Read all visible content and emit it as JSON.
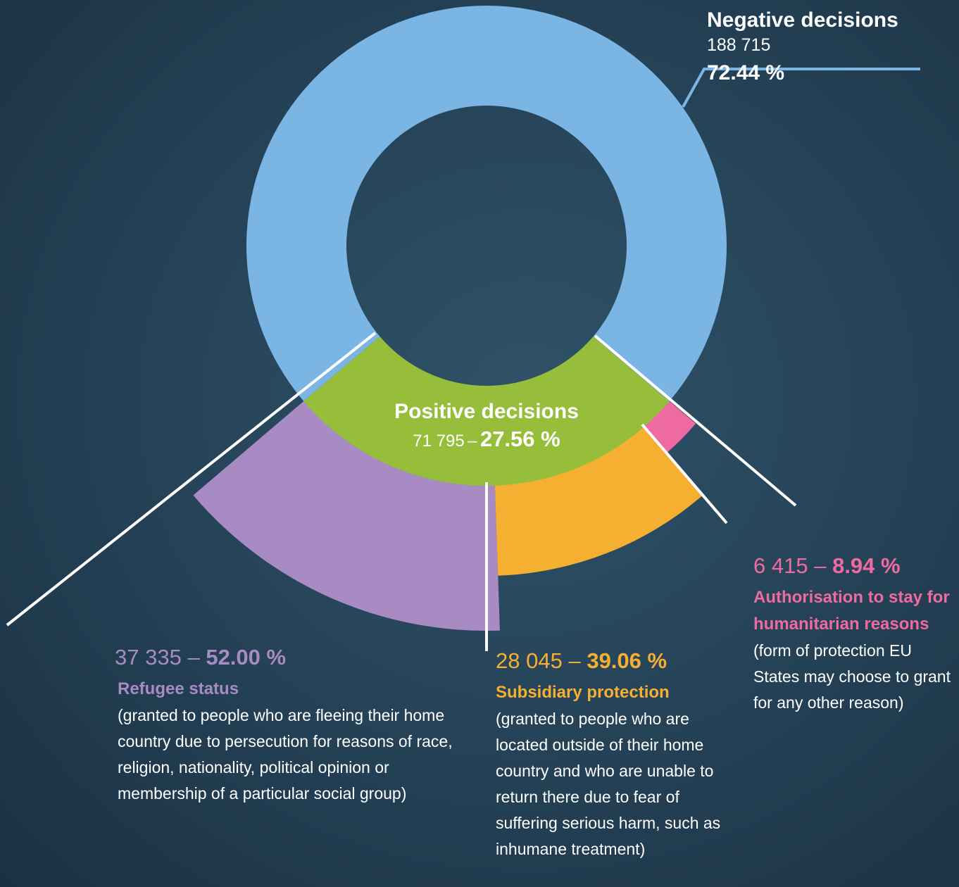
{
  "chart_data": {
    "type": "donut",
    "categories": [
      "Negative decisions",
      "Positive decisions"
    ],
    "values": [
      188715,
      71795
    ],
    "value_labels": [
      "188 715",
      "71 795"
    ],
    "percentages": [
      72.44,
      27.56
    ],
    "percentage_labels": [
      "72.44 %",
      "27.56 %"
    ],
    "colors": [
      "#7ab5e3",
      "#97be3b"
    ],
    "separator": "–",
    "breakdown": {
      "parent": 1,
      "categories": [
        "Refugee status",
        "Subsidiary protection",
        "Authorisation to stay for humanitarian reasons"
      ],
      "descriptions": [
        "(granted to people who are fleeing their home country due to persecution for reasons of race, religion, nationality, political opinion or membership of a particular social group)",
        "(granted to people who are located outside of their home country and who are unable to return there due to fear of suffering serious harm, such as inhumane treatment)",
        "(form of protection EU States may choose to grant for any other reason)"
      ],
      "values": [
        37335,
        28045,
        6415
      ],
      "value_labels": [
        "37 335",
        "28 045",
        "6 415"
      ],
      "percentages": [
        52.0,
        39.06,
        8.94
      ],
      "percentage_labels": [
        "52.00 %",
        "39.06 %",
        "8.94 %"
      ],
      "colors": [
        "#a78bc2",
        "#f5b031",
        "#ee6aa0"
      ]
    }
  }
}
